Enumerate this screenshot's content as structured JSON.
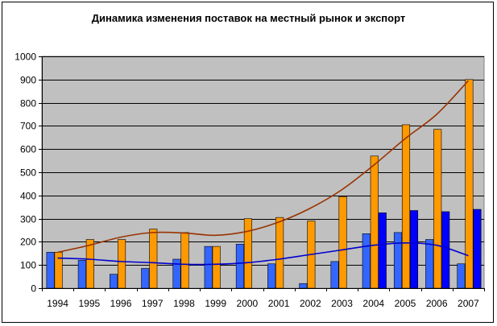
{
  "chart_data": {
    "type": "bar",
    "title": "Динамика изменения поставок на местный рынок и экспорт",
    "xlabel": "",
    "ylabel": "",
    "categories": [
      "1994",
      "1995",
      "1996",
      "1997",
      "1998",
      "1999",
      "2000",
      "2001",
      "2002",
      "2003",
      "2004",
      "2005",
      "2006",
      "2007"
    ],
    "ylim": [
      0,
      1000
    ],
    "y_ticks": [
      0,
      100,
      200,
      300,
      400,
      500,
      600,
      700,
      800,
      900,
      1000
    ],
    "grid": true,
    "legend": "none",
    "series": [
      {
        "color": "#3366ff",
        "values": [
          155,
          120,
          60,
          85,
          125,
          180,
          190,
          105,
          20,
          115,
          235,
          240,
          210,
          105
        ]
      },
      {
        "color": "#ff9900",
        "values": [
          155,
          210,
          210,
          255,
          240,
          180,
          300,
          305,
          290,
          395,
          570,
          705,
          685,
          900
        ]
      },
      {
        "color": "#0000ff",
        "values": [
          null,
          null,
          null,
          null,
          null,
          null,
          null,
          null,
          null,
          null,
          325,
          335,
          330,
          340
        ]
      }
    ],
    "trendlines": [
      {
        "color": "#993300",
        "values": [
          155,
          185,
          220,
          240,
          238,
          228,
          245,
          285,
          345,
          425,
          530,
          645,
          750,
          895
        ]
      },
      {
        "color": "#0000cc",
        "values": [
          130,
          125,
          115,
          110,
          103,
          103,
          110,
          125,
          145,
          165,
          185,
          195,
          185,
          140
        ]
      }
    ],
    "plot_background": "#c0c0c0"
  }
}
